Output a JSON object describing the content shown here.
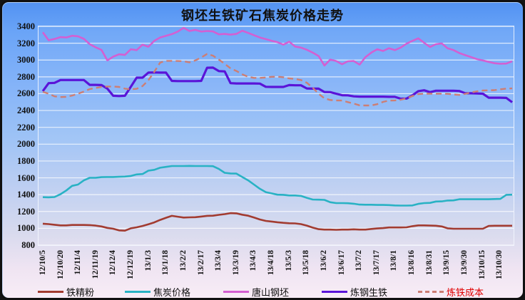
{
  "window_title": "钢坯生铁矿石焦炭价格走势",
  "chart_data": {
    "type": "line",
    "title": "钢坯生铁矿石焦炭价格走势",
    "xlabel": "",
    "ylabel": "",
    "ylim": [
      800,
      3400
    ],
    "ytick_step": 200,
    "y_ticks": [
      3400,
      3200,
      3000,
      2800,
      2600,
      2400,
      2200,
      2000,
      1800,
      1600,
      1400,
      1200,
      1000,
      800
    ],
    "grid": "horizontal",
    "legend_position": "bottom",
    "x_labels": [
      "12/10/5",
      "12/10/20",
      "12/11/4",
      "12/11/19",
      "12/12/4",
      "12/12/19",
      "13/1/3",
      "13/1/18",
      "13/2/2",
      "13/2/17",
      "13/3/4",
      "13/3/19",
      "13/4/3",
      "13/4/18",
      "13/5/3",
      "13/5/18",
      "13/6/2",
      "13/6/17",
      "13/7/2",
      "13/7/17",
      "13/8/1",
      "13/8/16",
      "13/8/31",
      "13/9/15",
      "13/9/30",
      "13/10/15",
      "13/10/30"
    ],
    "points_per_label_interval": 3,
    "series": [
      {
        "name": "铁精粉",
        "id": "iron-concentrate",
        "color": "#a23b30",
        "dash": false,
        "label_color": "#101010",
        "width": 2.6,
        "values": [
          1055,
          1050,
          1042,
          1035,
          1035,
          1040,
          1040,
          1040,
          1038,
          1032,
          1022,
          1005,
          995,
          975,
          972,
          1000,
          1012,
          1028,
          1048,
          1070,
          1100,
          1125,
          1148,
          1138,
          1128,
          1130,
          1132,
          1140,
          1148,
          1150,
          1160,
          1168,
          1180,
          1178,
          1162,
          1150,
          1128,
          1105,
          1088,
          1080,
          1072,
          1065,
          1060,
          1058,
          1050,
          1032,
          1008,
          990,
          985,
          985,
          982,
          985,
          985,
          988,
          985,
          985,
          992,
          998,
          1002,
          1010,
          1010,
          1010,
          1012,
          1025,
          1035,
          1035,
          1032,
          1030,
          1022,
          1000,
          995,
          995,
          995,
          995,
          995,
          995,
          1028,
          1030,
          1030,
          1030,
          1030
        ]
      },
      {
        "name": "焦炭价格",
        "id": "coke-price",
        "color": "#29b2c4",
        "dash": false,
        "label_color": "#101010",
        "width": 2.6,
        "values": [
          1370,
          1368,
          1372,
          1405,
          1450,
          1505,
          1520,
          1570,
          1600,
          1600,
          1608,
          1610,
          1610,
          1612,
          1615,
          1622,
          1640,
          1645,
          1685,
          1695,
          1720,
          1730,
          1740,
          1740,
          1740,
          1742,
          1740,
          1740,
          1740,
          1738,
          1705,
          1660,
          1652,
          1650,
          1610,
          1570,
          1520,
          1470,
          1430,
          1415,
          1400,
          1398,
          1390,
          1390,
          1385,
          1362,
          1342,
          1340,
          1338,
          1310,
          1300,
          1300,
          1298,
          1292,
          1282,
          1280,
          1280,
          1278,
          1278,
          1276,
          1272,
          1270,
          1270,
          1272,
          1290,
          1300,
          1302,
          1318,
          1320,
          1330,
          1332,
          1345,
          1345,
          1345,
          1345,
          1345,
          1345,
          1348,
          1350,
          1398,
          1400
        ]
      },
      {
        "name": "唐山钢坯",
        "id": "tangshan-billet",
        "color": "#d45fd2",
        "dash": false,
        "label_color": "#101010",
        "width": 2.6,
        "values": [
          3330,
          3235,
          3250,
          3272,
          3268,
          3288,
          3282,
          3252,
          3188,
          3152,
          3120,
          2995,
          3040,
          3068,
          3060,
          3128,
          3118,
          3182,
          3158,
          3228,
          3268,
          3288,
          3308,
          3338,
          3382,
          3345,
          3358,
          3338,
          3345,
          3340,
          3305,
          3310,
          3302,
          3310,
          3348,
          3322,
          3295,
          3268,
          3248,
          3228,
          3212,
          3182,
          3218,
          3160,
          3148,
          3122,
          3088,
          3048,
          2935,
          3005,
          2988,
          2950,
          2985,
          2988,
          2945,
          3035,
          3088,
          3128,
          3108,
          3140,
          3118,
          3148,
          3195,
          3228,
          3258,
          3205,
          3155,
          3188,
          3198,
          3140,
          3118,
          3082,
          3058,
          3035,
          3010,
          2995,
          2978,
          2962,
          2955,
          2958,
          2985
        ]
      },
      {
        "name": "炼钢生铁",
        "id": "steelmaking-pig-iron",
        "color": "#5a14d8",
        "dash": false,
        "label_color": "#101010",
        "width": 3.2,
        "values": [
          2630,
          2725,
          2728,
          2762,
          2762,
          2762,
          2762,
          2762,
          2705,
          2705,
          2702,
          2660,
          2575,
          2572,
          2575,
          2682,
          2790,
          2790,
          2850,
          2852,
          2850,
          2850,
          2752,
          2750,
          2750,
          2750,
          2750,
          2752,
          2908,
          2910,
          2868,
          2865,
          2725,
          2722,
          2722,
          2722,
          2722,
          2720,
          2682,
          2680,
          2680,
          2680,
          2702,
          2700,
          2700,
          2662,
          2660,
          2660,
          2620,
          2618,
          2600,
          2582,
          2580,
          2568,
          2565,
          2565,
          2565,
          2565,
          2565,
          2562,
          2562,
          2540,
          2542,
          2580,
          2630,
          2640,
          2618,
          2635,
          2635,
          2635,
          2635,
          2632,
          2605,
          2605,
          2602,
          2600,
          2552,
          2552,
          2552,
          2550,
          2498
        ]
      },
      {
        "name": "炼铁成本",
        "id": "ironmaking-cost",
        "color": "#cd7e74",
        "dash": true,
        "label_color": "#e00000",
        "width": 2.4,
        "values": [
          2622,
          2600,
          2568,
          2560,
          2562,
          2578,
          2600,
          2625,
          2655,
          2668,
          2680,
          2685,
          2685,
          2680,
          2660,
          2652,
          2658,
          2690,
          2760,
          2860,
          2970,
          2990,
          2990,
          2988,
          2985,
          2972,
          2995,
          3030,
          3072,
          3052,
          3005,
          2955,
          2900,
          2870,
          2830,
          2800,
          2788,
          2788,
          2792,
          2800,
          2802,
          2795,
          2782,
          2775,
          2762,
          2730,
          2672,
          2600,
          2545,
          2525,
          2520,
          2518,
          2500,
          2482,
          2462,
          2460,
          2460,
          2475,
          2502,
          2518,
          2520,
          2528,
          2545,
          2572,
          2595,
          2600,
          2600,
          2600,
          2600,
          2598,
          2590,
          2585,
          2598,
          2615,
          2628,
          2638,
          2640,
          2642,
          2652,
          2660,
          2662
        ]
      }
    ],
    "style": {
      "grid_color": "rgba(255,255,255,0.75)",
      "legend_lefts": [
        50,
        172,
        310,
        448,
        583
      ]
    }
  }
}
